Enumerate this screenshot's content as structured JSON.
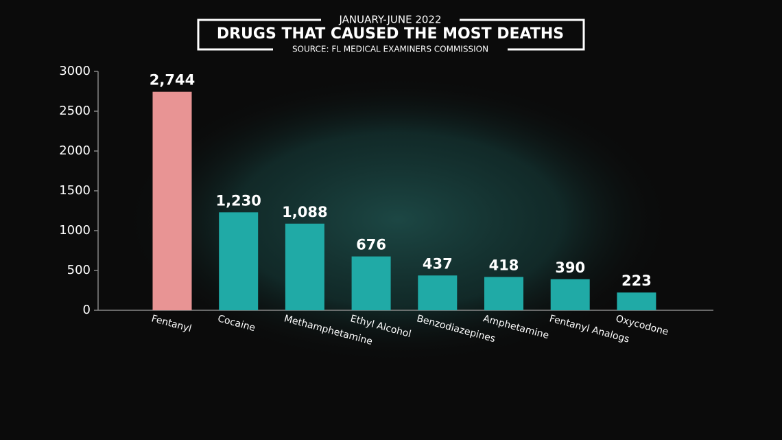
{
  "chart_data": {
    "type": "bar",
    "subtitle": "JANUARY-JUNE 2022",
    "title": "DRUGS THAT CAUSED THE MOST DEATHS",
    "source": "SOURCE: FL MEDICAL EXAMINERS COMMISSION",
    "categories": [
      "Fentanyl",
      "Cocaine",
      "Methamphetamine",
      "Ethyl Alcohol",
      "Benzodiazepines",
      "Amphetamine",
      "Fentanyl Analogs",
      "Oxycodone"
    ],
    "values": [
      2744,
      1230,
      1088,
      676,
      437,
      418,
      390,
      223
    ],
    "value_labels": [
      "2,744",
      "1,230",
      "1,088",
      "676",
      "437",
      "418",
      "390",
      "223"
    ],
    "colors": [
      "#e89494",
      "#20aaa6",
      "#20aaa6",
      "#20aaa6",
      "#20aaa6",
      "#20aaa6",
      "#20aaa6",
      "#20aaa6"
    ],
    "ylim": [
      0,
      3000
    ],
    "yticks": [
      0,
      500,
      1000,
      1500,
      2000,
      2500,
      3000
    ]
  }
}
